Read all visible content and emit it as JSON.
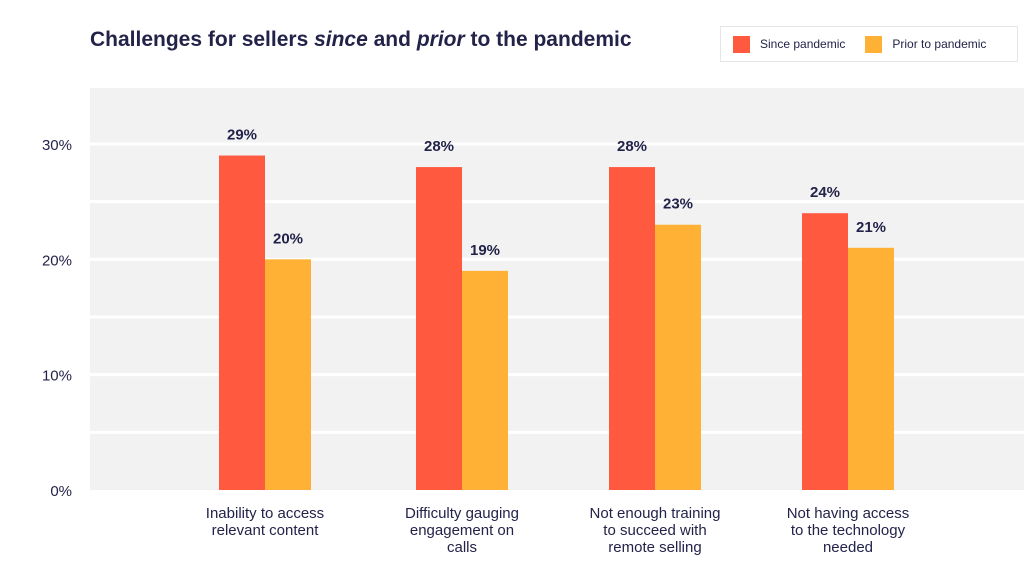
{
  "title_parts": {
    "p1": "Challenges for sellers ",
    "p2": "since",
    "p3": " and ",
    "p4": "prior",
    "p5": " to the pandemic"
  },
  "colors": {
    "since": "#ff5a40",
    "prior": "#ffb136",
    "plot_bg": "#f2f2f2",
    "text": "#23234a"
  },
  "chart_data": {
    "type": "bar",
    "categories": [
      [
        "Inability to access",
        "relevant content"
      ],
      [
        "Difficulty gauging",
        "engagement on",
        "calls"
      ],
      [
        "Not enough training",
        "to succeed with",
        "remote selling"
      ],
      [
        "Not having access",
        "to the technology",
        "needed"
      ]
    ],
    "series": [
      {
        "name": "Since pandemic",
        "values": [
          29,
          28,
          28,
          24
        ],
        "labels": [
          "29%",
          "28%",
          "28%",
          "24%"
        ]
      },
      {
        "name": "Prior to pandemic",
        "values": [
          20,
          19,
          23,
          21
        ],
        "labels": [
          "20%",
          "19%",
          "23%",
          "21%"
        ]
      }
    ],
    "y_ticks": [
      {
        "value": 0,
        "label": "0%"
      },
      {
        "value": 10,
        "label": "10%"
      },
      {
        "value": 20,
        "label": "20%"
      },
      {
        "value": 30,
        "label": "30%"
      }
    ],
    "ylim": [
      0,
      30
    ],
    "legend_position": "top-right",
    "grid": true
  }
}
